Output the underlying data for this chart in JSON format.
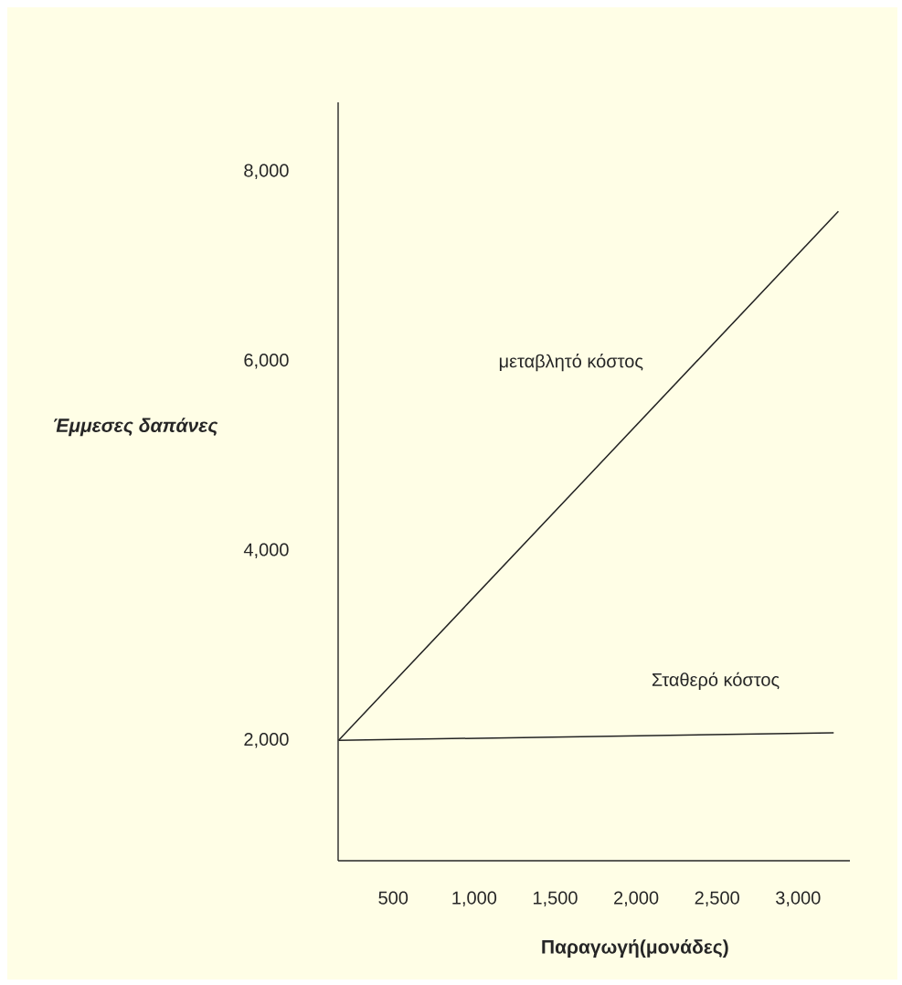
{
  "chart_data": {
    "type": "line",
    "xlabel": "Παραγωγή(μονάδες)",
    "ylabel": "Έμμεσες δαπάνες",
    "xlim": [
      160,
      3320
    ],
    "ylim": [
      730,
      8730
    ],
    "xticks": [
      {
        "value": 500,
        "label": "500"
      },
      {
        "value": 1000,
        "label": "1,000"
      },
      {
        "value": 1500,
        "label": "1,500"
      },
      {
        "value": 2000,
        "label": "2,000"
      },
      {
        "value": 2500,
        "label": "2,500"
      },
      {
        "value": 3000,
        "label": "3,000"
      }
    ],
    "yticks": [
      {
        "value": 2000,
        "label": "2,000"
      },
      {
        "value": 4000,
        "label": "4,000"
      },
      {
        "value": 6000,
        "label": "6,000"
      },
      {
        "value": 8000,
        "label": "8,000"
      }
    ],
    "marker": "none",
    "line_style": "solid",
    "series": [
      {
        "color": "#222222",
        "x": [
          163,
          3249
        ],
        "values": [
          2000,
          7580
        ]
      },
      {
        "color": "#222222",
        "x": [
          163,
          3220
        ],
        "values": [
          2000,
          2080
        ]
      }
    ],
    "annotations": [
      "μεταβλητό κόστος",
      "Σταθερό κόστος"
    ]
  }
}
